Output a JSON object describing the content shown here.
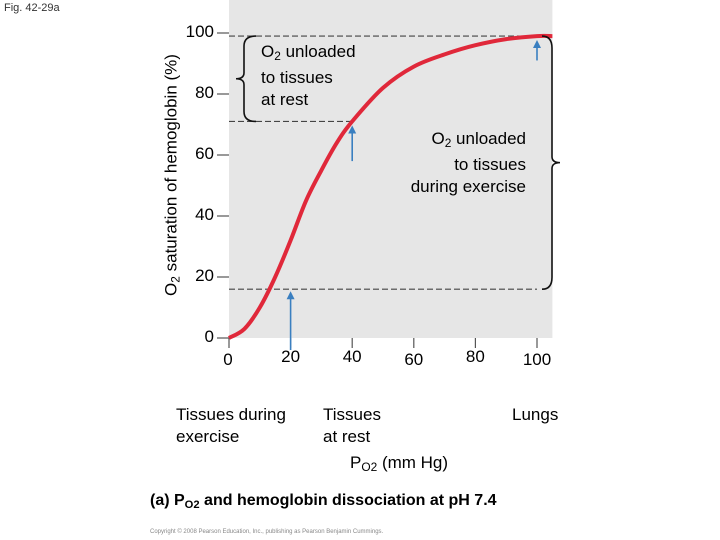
{
  "figure_label": "Fig. 42-29a",
  "caption": {
    "prefix": "(a) P",
    "sub": "O2",
    "suffix": " and hemoglobin dissociation at pH 7.4"
  },
  "copyright": "Copyright © 2008 Pearson Education, Inc., publishing as Pearson Benjamin Cummings.",
  "chart_data": {
    "type": "line",
    "ylabel": {
      "sub_prefix": "O",
      "sub": "2",
      "text": " saturation of hemoglobin (%)"
    },
    "xlabel": {
      "prefix": "P",
      "sub": "O2",
      "suffix": " (mm Hg)"
    },
    "xlim": [
      0,
      105
    ],
    "ylim": [
      0,
      105
    ],
    "x_ticks": [
      0,
      20,
      40,
      60,
      80,
      100
    ],
    "x_tick_labels": [
      "0",
      "20",
      "40",
      "60",
      "80",
      "100"
    ],
    "y_ticks": [
      0,
      20,
      40,
      60,
      80,
      100
    ],
    "y_tick_labels": [
      "0",
      "20",
      "40",
      "60",
      "80",
      "100"
    ],
    "curve_color": "#e0283a",
    "grid": false,
    "series": [
      {
        "x": [
          0,
          5,
          10,
          15,
          20,
          25,
          30,
          35,
          40,
          50,
          60,
          70,
          80,
          90,
          100,
          105
        ],
        "y": [
          0,
          3,
          10,
          20,
          32,
          45,
          55,
          64,
          71,
          82,
          89,
          93,
          96,
          98,
          99,
          99
        ]
      }
    ],
    "reference_lines": [
      {
        "y": 99,
        "x_end": 100
      },
      {
        "y": 71,
        "x_end": 40
      },
      {
        "y": 16,
        "x_end": 100
      }
    ],
    "arrows_x": [
      20,
      40,
      100
    ],
    "annotations": [
      {
        "lines": [
          "O|2| unloaded",
          "to tissues",
          "at rest"
        ]
      },
      {
        "lines": [
          "O|2| unloaded",
          "to tissues",
          "during exercise"
        ]
      }
    ],
    "x_categories": [
      {
        "lines": [
          "Tissues during",
          "exercise"
        ]
      },
      {
        "lines": [
          "Tissues",
          "at rest"
        ]
      },
      {
        "lines": [
          "Lungs"
        ]
      }
    ]
  }
}
